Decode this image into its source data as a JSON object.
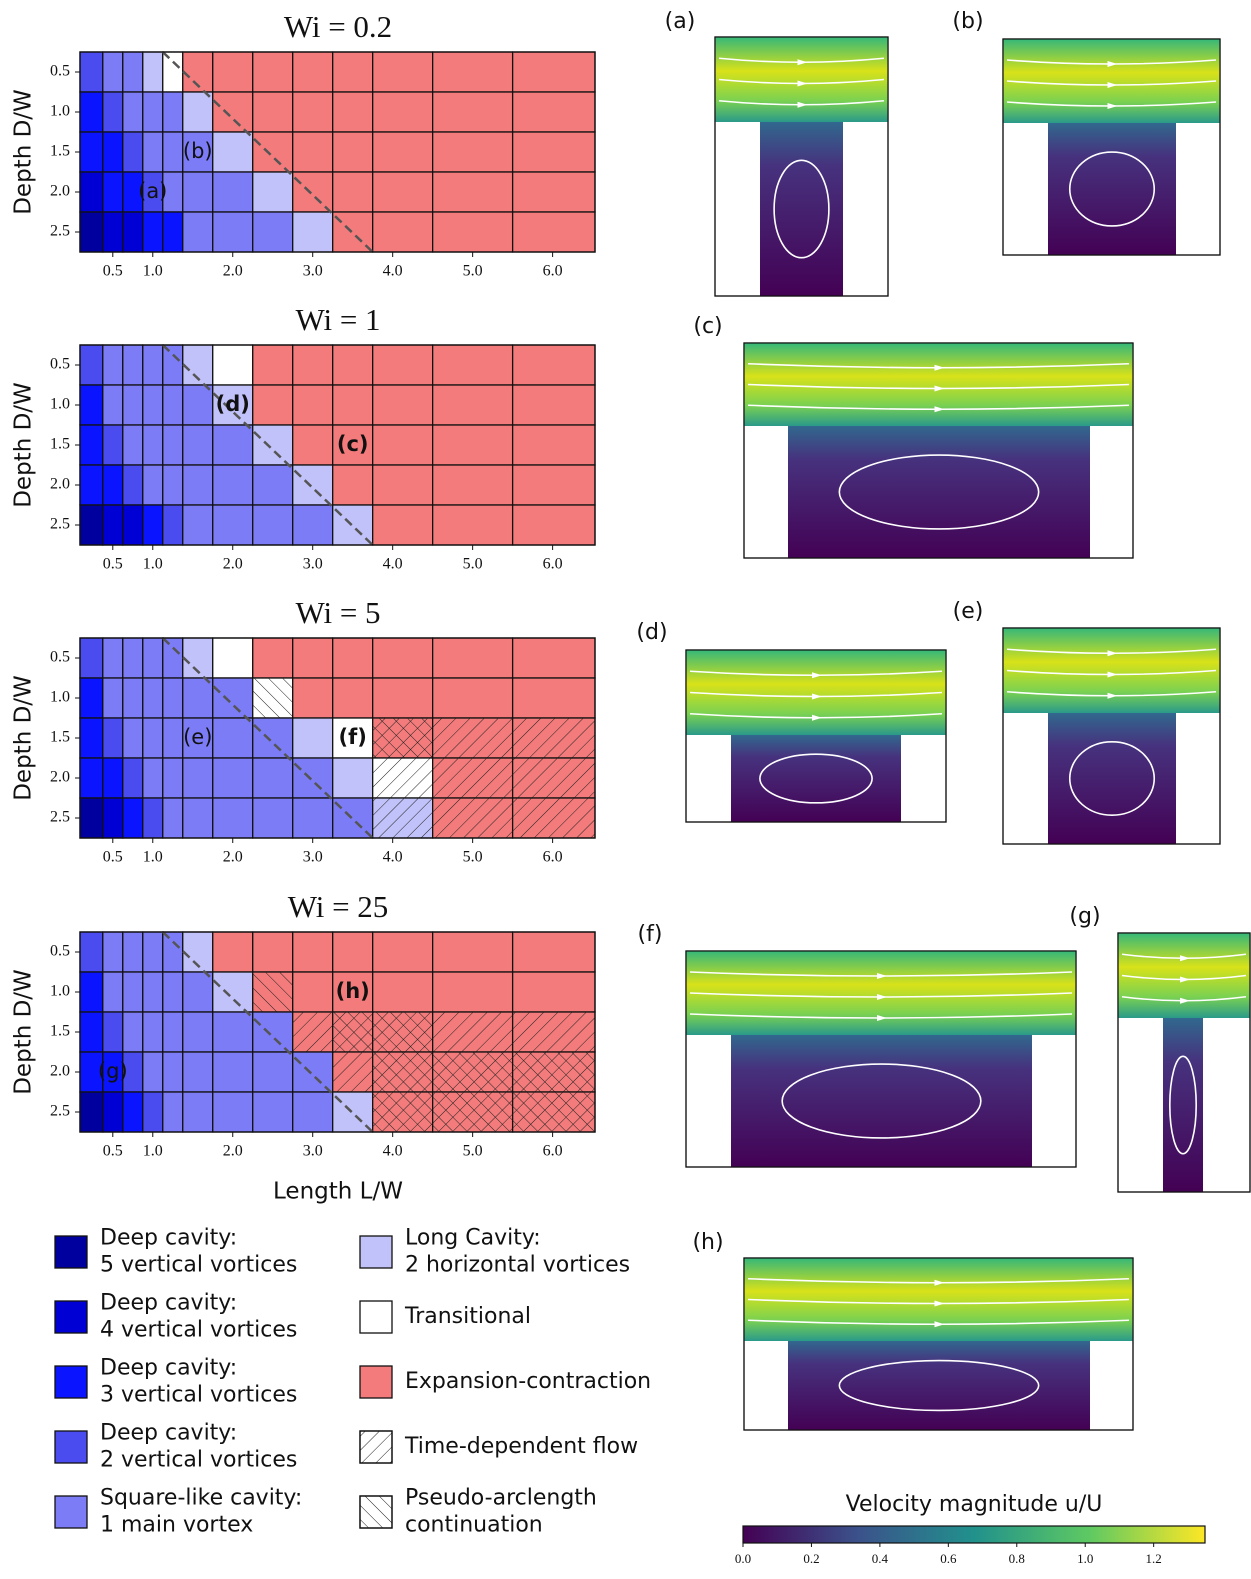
{
  "chart_data": [
    {
      "type": "regime-map",
      "title": "Wi = 0.2",
      "ylabel": "Depth D/W",
      "x": [
        0.25,
        0.5,
        0.75,
        1.0,
        1.25,
        1.5,
        2,
        2.5,
        3,
        3.5,
        4,
        5,
        6
      ],
      "y": [
        0.5,
        1.0,
        1.5,
        2.0,
        2.5
      ],
      "xlim": [
        0.09,
        6.53
      ],
      "ylim": [
        0.25,
        2.75
      ],
      "y_inverted": true,
      "xticks": [
        0.5,
        {
          "value": 1,
          "label": "1.0"
        },
        {
          "value": 2,
          "label": "2.0"
        },
        {
          "value": 3,
          "label": "3.0"
        },
        {
          "value": 4,
          "label": "4.0"
        },
        {
          "value": 5,
          "label": "5.0"
        },
        {
          "value": 6,
          "label": "6.0"
        }
      ],
      "yticks": [
        0.5,
        {
          "value": 1,
          "label": "1.0"
        },
        1.5,
        {
          "value": 2,
          "label": "2.0"
        },
        2.5
      ],
      "values": [
        [
          3,
          4,
          4,
          5,
          6,
          7,
          7,
          7,
          7,
          7,
          7,
          7,
          7
        ],
        [
          2,
          3,
          4,
          4,
          4,
          5,
          7,
          7,
          7,
          7,
          7,
          7,
          7
        ],
        [
          2,
          2,
          3,
          4,
          4,
          4,
          5,
          7,
          7,
          7,
          7,
          7,
          7
        ],
        [
          1,
          2,
          2,
          3,
          4,
          4,
          4,
          5,
          7,
          7,
          7,
          7,
          7
        ],
        [
          0,
          1,
          1,
          2,
          2,
          4,
          4,
          4,
          5,
          7,
          7,
          7,
          7
        ]
      ],
      "annotations": [
        "(a)",
        "(b)"
      ]
    },
    {
      "type": "regime-map",
      "title": "Wi = 1",
      "ylabel": "Depth D/W",
      "x": [
        0.25,
        0.5,
        0.75,
        1.0,
        1.25,
        1.5,
        2,
        2.5,
        3,
        3.5,
        4,
        5,
        6
      ],
      "y": [
        0.5,
        1.0,
        1.5,
        2.0,
        2.5
      ],
      "xlim": [
        0.09,
        6.53
      ],
      "ylim": [
        0.25,
        2.75
      ],
      "y_inverted": true,
      "xticks": [
        0.5,
        {
          "value": 1,
          "label": "1.0"
        },
        {
          "value": 2,
          "label": "2.0"
        },
        {
          "value": 3,
          "label": "3.0"
        },
        {
          "value": 4,
          "label": "4.0"
        },
        {
          "value": 5,
          "label": "5.0"
        },
        {
          "value": 6,
          "label": "6.0"
        }
      ],
      "yticks": [
        0.5,
        {
          "value": 1,
          "label": "1.0"
        },
        1.5,
        {
          "value": 2,
          "label": "2.0"
        },
        2.5
      ],
      "values": [
        [
          3,
          4,
          4,
          4,
          4,
          5,
          6,
          7,
          7,
          7,
          7,
          7,
          7
        ],
        [
          2,
          4,
          4,
          4,
          4,
          4,
          5,
          7,
          7,
          7,
          7,
          7,
          7
        ],
        [
          2,
          3,
          4,
          4,
          4,
          4,
          4,
          5,
          7,
          7,
          7,
          7,
          7
        ],
        [
          2,
          2,
          3,
          4,
          4,
          4,
          4,
          4,
          5,
          7,
          7,
          7,
          7
        ],
        [
          0,
          1,
          1,
          2,
          3,
          4,
          4,
          4,
          4,
          5,
          7,
          7,
          7
        ]
      ],
      "annotations": [
        "(d)",
        "(c)"
      ]
    },
    {
      "type": "regime-map",
      "title": "Wi = 5",
      "ylabel": "Depth D/W",
      "x": [
        0.25,
        0.5,
        0.75,
        1.0,
        1.25,
        1.5,
        2,
        2.5,
        3,
        3.5,
        4,
        5,
        6
      ],
      "y": [
        0.5,
        1.0,
        1.5,
        2.0,
        2.5
      ],
      "xlim": [
        0.09,
        6.53
      ],
      "ylim": [
        0.25,
        2.75
      ],
      "y_inverted": true,
      "xticks": [
        0.5,
        {
          "value": 1,
          "label": "1.0"
        },
        {
          "value": 2,
          "label": "2.0"
        },
        {
          "value": 3,
          "label": "3.0"
        },
        {
          "value": 4,
          "label": "4.0"
        },
        {
          "value": 5,
          "label": "5.0"
        },
        {
          "value": 6,
          "label": "6.0"
        }
      ],
      "yticks": [
        0.5,
        {
          "value": 1,
          "label": "1.0"
        },
        1.5,
        {
          "value": 2,
          "label": "2.0"
        },
        2.5
      ],
      "values": [
        [
          3,
          4,
          4,
          4,
          4,
          5,
          6,
          7,
          7,
          7,
          7,
          7,
          7
        ],
        [
          2,
          4,
          4,
          4,
          4,
          4,
          4,
          6,
          7,
          7,
          7,
          7,
          7
        ],
        [
          2,
          3,
          4,
          4,
          4,
          4,
          4,
          4,
          5,
          6,
          7,
          7,
          7
        ],
        [
          2,
          2,
          3,
          4,
          4,
          4,
          4,
          4,
          4,
          5,
          6,
          7,
          7
        ],
        [
          0,
          1,
          2,
          3,
          4,
          4,
          4,
          4,
          4,
          4,
          5,
          7,
          7
        ]
      ],
      "hatch": [
        [
          null,
          null,
          null,
          null,
          null,
          null,
          null,
          null,
          null,
          null,
          null,
          null,
          null
        ],
        [
          null,
          null,
          null,
          null,
          null,
          null,
          null,
          [
            9
          ],
          null,
          null,
          null,
          null,
          null
        ],
        [
          null,
          null,
          null,
          null,
          null,
          null,
          null,
          null,
          null,
          null,
          [
            8,
            9
          ],
          [
            8
          ],
          [
            8
          ]
        ],
        [
          null,
          null,
          null,
          null,
          null,
          null,
          null,
          null,
          null,
          null,
          [
            8
          ],
          [
            8
          ],
          [
            8
          ]
        ],
        [
          null,
          null,
          null,
          null,
          null,
          null,
          null,
          null,
          null,
          null,
          [
            8
          ],
          [
            8
          ],
          [
            8
          ]
        ]
      ],
      "annotations": [
        "(e)",
        "(f)"
      ]
    },
    {
      "type": "regime-map",
      "title": "Wi = 25",
      "ylabel": "Depth D/W",
      "xlabel": "Length L/W",
      "x": [
        0.25,
        0.5,
        0.75,
        1.0,
        1.25,
        1.5,
        2,
        2.5,
        3,
        3.5,
        4,
        5,
        6
      ],
      "y": [
        0.5,
        1.0,
        1.5,
        2.0,
        2.5
      ],
      "xlim": [
        0.09,
        6.53
      ],
      "ylim": [
        0.25,
        2.75
      ],
      "y_inverted": true,
      "xticks": [
        0.5,
        {
          "value": 1,
          "label": "1.0"
        },
        {
          "value": 2,
          "label": "2.0"
        },
        {
          "value": 3,
          "label": "3.0"
        },
        {
          "value": 4,
          "label": "4.0"
        },
        {
          "value": 5,
          "label": "5.0"
        },
        {
          "value": 6,
          "label": "6.0"
        }
      ],
      "yticks": [
        0.5,
        {
          "value": 1,
          "label": "1.0"
        },
        1.5,
        {
          "value": 2,
          "label": "2.0"
        },
        2.5
      ],
      "values": [
        [
          3,
          4,
          4,
          4,
          4,
          5,
          7,
          7,
          7,
          7,
          7,
          7,
          7
        ],
        [
          2,
          4,
          4,
          4,
          4,
          4,
          5,
          7,
          7,
          7,
          7,
          7,
          7
        ],
        [
          2,
          3,
          4,
          4,
          4,
          4,
          4,
          4,
          7,
          7,
          7,
          7,
          7
        ],
        [
          2,
          2,
          3,
          4,
          4,
          4,
          4,
          4,
          4,
          7,
          7,
          7,
          7
        ],
        [
          0,
          1,
          2,
          3,
          4,
          4,
          4,
          4,
          4,
          5,
          7,
          7,
          7
        ]
      ],
      "hatch": [
        [
          null,
          null,
          null,
          null,
          null,
          null,
          null,
          null,
          null,
          null,
          null,
          null,
          null
        ],
        [
          null,
          null,
          null,
          null,
          null,
          null,
          null,
          [
            9
          ],
          null,
          null,
          null,
          null,
          null
        ],
        [
          null,
          null,
          null,
          null,
          null,
          null,
          null,
          null,
          [
            8
          ],
          [
            8,
            9
          ],
          [
            8,
            9
          ],
          [
            8
          ],
          [
            8
          ]
        ],
        [
          null,
          null,
          null,
          null,
          null,
          null,
          null,
          null,
          null,
          [
            8
          ],
          [
            8,
            9
          ],
          [
            8,
            9
          ],
          [
            8,
            9
          ]
        ],
        [
          null,
          null,
          null,
          null,
          null,
          null,
          null,
          null,
          null,
          null,
          [
            8,
            9
          ],
          [
            8,
            9
          ],
          [
            8,
            9
          ]
        ]
      ],
      "annotations": [
        "(g)",
        "(h)"
      ]
    }
  ],
  "legend": {
    "entries": [
      {
        "label": [
          "Deep cavity:",
          "5 vertical vortices"
        ],
        "color": "#00009e"
      },
      {
        "label": [
          "Deep cavity:",
          "4 vertical vortices"
        ],
        "color": "#0000d4"
      },
      {
        "label": [
          "Deep cavity:",
          "3 vertical vortices"
        ],
        "color": "#0a14ff"
      },
      {
        "label": [
          "Deep cavity:",
          "2 vertical vortices"
        ],
        "color": "#4a4cf0"
      },
      {
        "label": [
          "Square-like cavity:",
          "1 main vortex"
        ],
        "color": "#7c7cf6"
      },
      {
        "label": [
          "Long Cavity:",
          "2 horizontal vortices"
        ],
        "color": "#c2c2fa"
      },
      {
        "label": [
          "Transitional"
        ],
        "color": "#ffffff"
      },
      {
        "label": [
          "Expansion-contraction"
        ],
        "color": "#f47b7b"
      },
      {
        "label": [
          "Time-dependent flow"
        ],
        "pattern": "/"
      },
      {
        "label": [
          "Pseudo-arclength",
          "continuation"
        ],
        "pattern": "\\"
      }
    ]
  },
  "panels": [
    "(a)",
    "(b)",
    "(c)",
    "(d)",
    "(e)",
    "(f)",
    "(g)",
    "(h)"
  ],
  "colorbar": {
    "label": "Velocity magnitude u/U",
    "lim": [
      0,
      1.35
    ],
    "ticks": [
      {
        "value": 0,
        "label": "0.0"
      },
      0.2,
      0.4,
      0.6,
      0.8,
      {
        "value": 1,
        "label": "1.0"
      },
      1.2
    ]
  }
}
